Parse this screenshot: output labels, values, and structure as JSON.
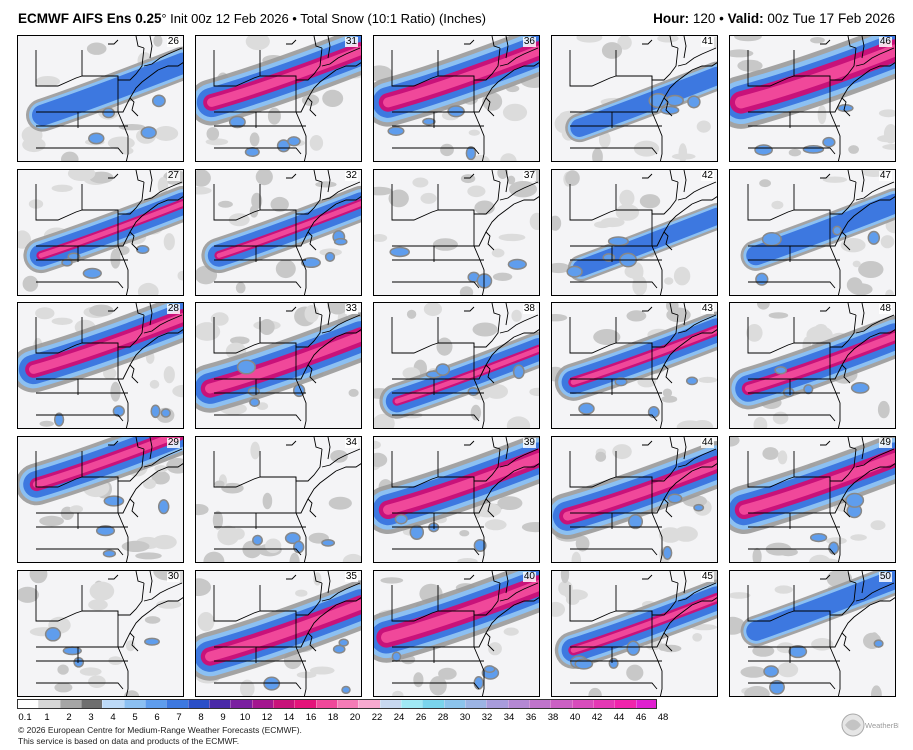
{
  "header": {
    "model": "ECMWF AIFS Ens 0.25",
    "degree": "°",
    "init": " Init 00z 12 Feb 2026",
    "product": " • Total Snow (10:1 Ratio) (Inches)",
    "hour_label": "Hour:",
    "hour_value": " 120",
    "sep": " • ",
    "valid_label": "Valid:",
    "valid_value": " 00z Tue 17 Feb 2026"
  },
  "members": [
    "26",
    "31",
    "36",
    "41",
    "46",
    "27",
    "32",
    "37",
    "42",
    "47",
    "28",
    "33",
    "38",
    "43",
    "48",
    "29",
    "34",
    "39",
    "44",
    "49",
    "30",
    "35",
    "40",
    "45",
    "50"
  ],
  "colorbar": {
    "labels": [
      "0.1",
      "1",
      "2",
      "3",
      "4",
      "5",
      "6",
      "7",
      "8",
      "9",
      "10",
      "12",
      "14",
      "16",
      "18",
      "20",
      "22",
      "24",
      "26",
      "28",
      "30",
      "32",
      "34",
      "36",
      "38",
      "40",
      "42",
      "44",
      "46",
      "48"
    ],
    "colors": [
      "#ffffff",
      "#d6d6d6",
      "#a5a5a5",
      "#6e6e6e",
      "#bcd9f7",
      "#8cc0f2",
      "#5f9ded",
      "#3d78e0",
      "#2b4fc8",
      "#4a2aa8",
      "#7a1fa0",
      "#a3168f",
      "#c8127a",
      "#e4137a",
      "#f0489a",
      "#f47bb6",
      "#f7a9d0",
      "#c8d8f0",
      "#a0e8f4",
      "#7ad4ec",
      "#8cc4ec",
      "#9cb4e4",
      "#a89cdc",
      "#b488d4",
      "#c074cc",
      "#cc60c4",
      "#d84cbc",
      "#e438b4",
      "#f024ac",
      "#e020d0"
    ]
  },
  "credits": [
    "© 2026 European Centre for Medium-Range Weather Forecasts (ECMWF).",
    "This service is based on data and products of the ECMWF."
  ],
  "logo_text": "WeatherBELL"
}
